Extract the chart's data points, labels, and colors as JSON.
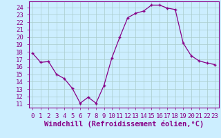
{
  "x": [
    0,
    1,
    2,
    3,
    4,
    5,
    6,
    7,
    8,
    9,
    10,
    11,
    12,
    13,
    14,
    15,
    16,
    17,
    18,
    19,
    20,
    21,
    22,
    23
  ],
  "y": [
    17.8,
    16.6,
    16.7,
    15.0,
    14.4,
    13.1,
    11.1,
    11.9,
    11.1,
    13.5,
    17.2,
    20.0,
    22.6,
    23.2,
    23.5,
    24.3,
    24.3,
    23.9,
    23.7,
    19.2,
    17.5,
    16.8,
    16.5,
    16.3
  ],
  "line_color": "#880088",
  "marker": "+",
  "bg_color": "#cceeff",
  "grid_color": "#aacccc",
  "xlabel": "Windchill (Refroidissement éolien,°C)",
  "ylim": [
    10.5,
    24.8
  ],
  "xlim": [
    -0.5,
    23.5
  ],
  "yticks": [
    11,
    12,
    13,
    14,
    15,
    16,
    17,
    18,
    19,
    20,
    21,
    22,
    23,
    24
  ],
  "xticks": [
    0,
    1,
    2,
    3,
    4,
    5,
    6,
    7,
    8,
    9,
    10,
    11,
    12,
    13,
    14,
    15,
    16,
    17,
    18,
    19,
    20,
    21,
    22,
    23
  ],
  "tick_color": "#880088",
  "label_color": "#880088",
  "tick_fontsize": 6.5,
  "xlabel_fontsize": 7.5
}
